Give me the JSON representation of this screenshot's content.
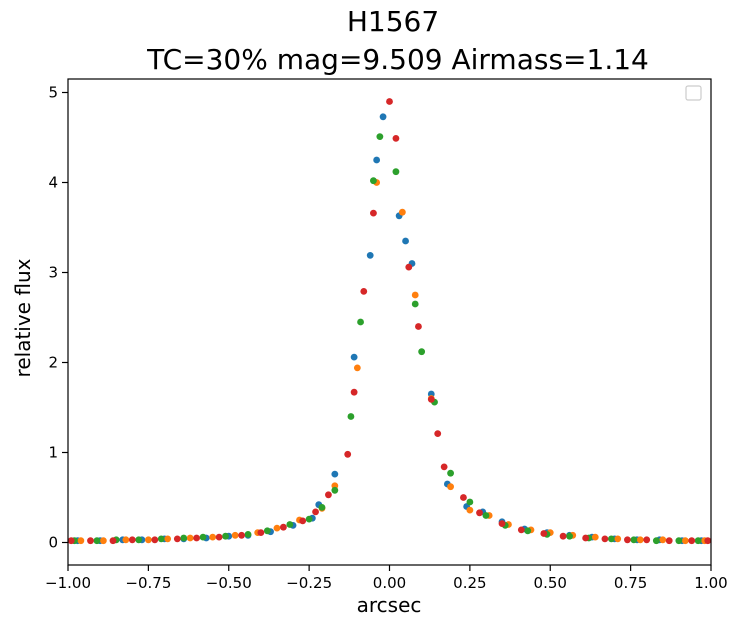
{
  "chart_data": {
    "type": "scatter",
    "title": "H1567",
    "subtitle": "TC=30%  mag=9.509  Airmass=1.14",
    "xlabel": "arcsec",
    "ylabel": "relative flux",
    "xlim": [
      -1.0,
      1.0
    ],
    "ylim": [
      -0.25,
      5.15
    ],
    "xticks": [
      -1.0,
      -0.75,
      -0.5,
      -0.25,
      0.0,
      0.25,
      0.5,
      0.75,
      1.0
    ],
    "xtick_labels": [
      "−1.00",
      "−0.75",
      "−0.50",
      "−0.25",
      "0.00",
      "0.25",
      "0.50",
      "0.75",
      "1.00"
    ],
    "yticks": [
      0,
      1,
      2,
      3,
      4,
      5
    ],
    "ytick_labels": [
      "0",
      "1",
      "2",
      "3",
      "4",
      "5"
    ],
    "grid": false,
    "legend": "top-right (empty)",
    "series": [
      {
        "color": "#1f77b4",
        "points": [
          [
            -0.97,
            0.02
          ],
          [
            -0.9,
            0.02
          ],
          [
            -0.83,
            0.03
          ],
          [
            -0.77,
            0.03
          ],
          [
            -0.7,
            0.04
          ],
          [
            -0.64,
            0.04
          ],
          [
            -0.57,
            0.05
          ],
          [
            -0.5,
            0.07
          ],
          [
            -0.44,
            0.08
          ],
          [
            -0.37,
            0.12
          ],
          [
            -0.3,
            0.19
          ],
          [
            -0.24,
            0.27
          ],
          [
            -0.22,
            0.42
          ],
          [
            -0.17,
            0.76
          ],
          [
            -0.11,
            2.06
          ],
          [
            -0.06,
            3.19
          ],
          [
            -0.04,
            4.25
          ],
          [
            -0.02,
            4.73
          ],
          [
            0.03,
            3.63
          ],
          [
            0.05,
            3.35
          ],
          [
            0.07,
            3.1
          ],
          [
            0.13,
            1.65
          ],
          [
            0.18,
            0.65
          ],
          [
            0.24,
            0.4
          ],
          [
            0.29,
            0.34
          ],
          [
            0.35,
            0.23
          ],
          [
            0.42,
            0.15
          ],
          [
            0.49,
            0.11
          ],
          [
            0.56,
            0.08
          ],
          [
            0.63,
            0.06
          ],
          [
            0.7,
            0.04
          ],
          [
            0.77,
            0.03
          ],
          [
            0.84,
            0.03
          ],
          [
            0.91,
            0.02
          ],
          [
            0.97,
            0.02
          ]
        ]
      },
      {
        "color": "#ff7f0e",
        "points": [
          [
            -0.96,
            0.02
          ],
          [
            -0.89,
            0.02
          ],
          [
            -0.82,
            0.03
          ],
          [
            -0.75,
            0.03
          ],
          [
            -0.69,
            0.04
          ],
          [
            -0.62,
            0.05
          ],
          [
            -0.55,
            0.06
          ],
          [
            -0.48,
            0.08
          ],
          [
            -0.41,
            0.11
          ],
          [
            -0.35,
            0.16
          ],
          [
            -0.28,
            0.25
          ],
          [
            -0.21,
            0.38
          ],
          [
            -0.17,
            0.63
          ],
          [
            -0.1,
            1.94
          ],
          [
            -0.04,
            4.0
          ],
          [
            0.04,
            3.67
          ],
          [
            0.08,
            2.75
          ],
          [
            0.13,
            1.6
          ],
          [
            0.19,
            0.62
          ],
          [
            0.25,
            0.36
          ],
          [
            0.31,
            0.3
          ],
          [
            0.37,
            0.2
          ],
          [
            0.44,
            0.14
          ],
          [
            0.5,
            0.11
          ],
          [
            0.57,
            0.08
          ],
          [
            0.64,
            0.06
          ],
          [
            0.71,
            0.04
          ],
          [
            0.78,
            0.03
          ],
          [
            0.85,
            0.03
          ],
          [
            0.92,
            0.02
          ],
          [
            0.98,
            0.02
          ]
        ]
      },
      {
        "color": "#2ca02c",
        "points": [
          [
            -0.98,
            0.02
          ],
          [
            -0.91,
            0.02
          ],
          [
            -0.85,
            0.03
          ],
          [
            -0.78,
            0.03
          ],
          [
            -0.71,
            0.04
          ],
          [
            -0.64,
            0.05
          ],
          [
            -0.58,
            0.06
          ],
          [
            -0.51,
            0.07
          ],
          [
            -0.44,
            0.09
          ],
          [
            -0.38,
            0.13
          ],
          [
            -0.31,
            0.2
          ],
          [
            -0.25,
            0.26
          ],
          [
            -0.21,
            0.39
          ],
          [
            -0.17,
            0.58
          ],
          [
            -0.12,
            1.4
          ],
          [
            -0.09,
            2.45
          ],
          [
            -0.05,
            4.02
          ],
          [
            -0.03,
            4.51
          ],
          [
            0.02,
            4.12
          ],
          [
            0.08,
            2.65
          ],
          [
            0.1,
            2.12
          ],
          [
            0.14,
            1.56
          ],
          [
            0.19,
            0.77
          ],
          [
            0.25,
            0.45
          ],
          [
            0.3,
            0.3
          ],
          [
            0.36,
            0.19
          ],
          [
            0.43,
            0.13
          ],
          [
            0.49,
            0.09
          ],
          [
            0.56,
            0.07
          ],
          [
            0.62,
            0.05
          ],
          [
            0.69,
            0.04
          ],
          [
            0.76,
            0.03
          ],
          [
            0.83,
            0.02
          ],
          [
            0.9,
            0.02
          ],
          [
            0.96,
            0.02
          ]
        ]
      },
      {
        "color": "#d62728",
        "points": [
          [
            -0.99,
            0.02
          ],
          [
            -0.93,
            0.02
          ],
          [
            -0.86,
            0.02
          ],
          [
            -0.8,
            0.03
          ],
          [
            -0.73,
            0.03
          ],
          [
            -0.66,
            0.04
          ],
          [
            -0.6,
            0.05
          ],
          [
            -0.53,
            0.06
          ],
          [
            -0.46,
            0.08
          ],
          [
            -0.4,
            0.11
          ],
          [
            -0.33,
            0.17
          ],
          [
            -0.27,
            0.24
          ],
          [
            -0.23,
            0.34
          ],
          [
            -0.19,
            0.53
          ],
          [
            -0.13,
            0.98
          ],
          [
            -0.11,
            1.67
          ],
          [
            -0.08,
            2.79
          ],
          [
            -0.05,
            3.66
          ],
          [
            0.0,
            4.9
          ],
          [
            0.02,
            4.49
          ],
          [
            0.06,
            3.06
          ],
          [
            0.09,
            2.4
          ],
          [
            0.13,
            1.59
          ],
          [
            0.15,
            1.21
          ],
          [
            0.17,
            0.84
          ],
          [
            0.23,
            0.5
          ],
          [
            0.28,
            0.33
          ],
          [
            0.35,
            0.21
          ],
          [
            0.41,
            0.14
          ],
          [
            0.48,
            0.1
          ],
          [
            0.54,
            0.07
          ],
          [
            0.61,
            0.05
          ],
          [
            0.67,
            0.04
          ],
          [
            0.74,
            0.03
          ],
          [
            0.8,
            0.03
          ],
          [
            0.87,
            0.02
          ],
          [
            0.94,
            0.02
          ],
          [
            0.99,
            0.02
          ]
        ]
      }
    ]
  }
}
